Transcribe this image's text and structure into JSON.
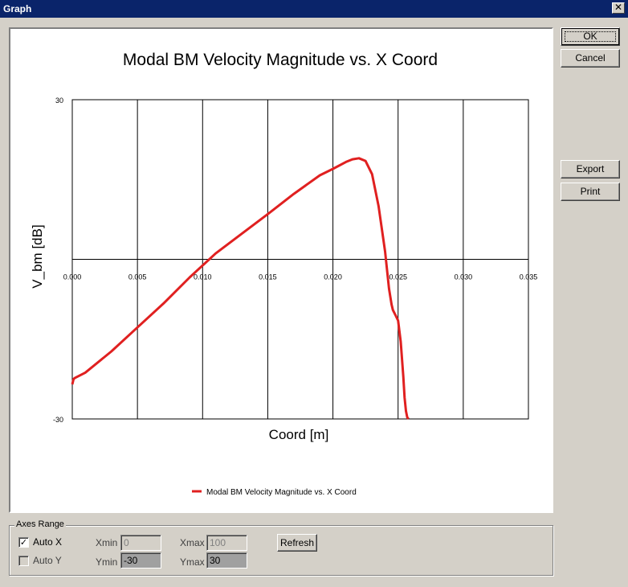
{
  "window": {
    "title": "Graph",
    "close_glyph": "✕"
  },
  "buttons": {
    "ok": "OK",
    "cancel": "Cancel",
    "export": "Export",
    "print": "Print",
    "refresh": "Refresh"
  },
  "chart_data": {
    "type": "line",
    "title": "Modal BM Velocity Magnitude vs. X Coord",
    "xlabel": "Coord [m]",
    "ylabel": "V_bm [dB]",
    "xlim": [
      0.0,
      0.035
    ],
    "ylim": [
      -30,
      30
    ],
    "xticks": [
      "0.000",
      "0.005",
      "0.010",
      "0.015",
      "0.020",
      "0.025",
      "0.030",
      "0.035"
    ],
    "yticks": [
      "30",
      "-30"
    ],
    "grid": true,
    "legend_position": "bottom-center",
    "line_color": "#e02020",
    "series": [
      {
        "name": "Modal BM Velocity Magnitude vs. X Coord",
        "x": [
          0.0,
          0.0001,
          0.0002,
          0.001,
          0.003,
          0.005,
          0.007,
          0.009,
          0.011,
          0.013,
          0.015,
          0.017,
          0.019,
          0.02,
          0.021,
          0.0215,
          0.022,
          0.0225,
          0.023,
          0.0235,
          0.024,
          0.0243,
          0.0245,
          0.0246,
          0.0248,
          0.025,
          0.0252,
          0.0254,
          0.0255,
          0.0256,
          0.0257,
          0.0258
        ],
        "y": [
          -23.5,
          -22.5,
          -22.3,
          -21.3,
          -17.3,
          -12.8,
          -8.3,
          -3.4,
          1.1,
          4.8,
          8.5,
          12.3,
          15.8,
          17.0,
          18.3,
          18.8,
          19.0,
          18.5,
          16.0,
          10.0,
          1.5,
          -5.5,
          -8.5,
          -9.5,
          -10.5,
          -11.5,
          -15.5,
          -22.0,
          -26.0,
          -28.5,
          -29.7,
          -30.0
        ]
      }
    ]
  },
  "axes_range": {
    "group_label": "Axes Range",
    "auto_x": {
      "label": "Auto X",
      "checked": true
    },
    "auto_y": {
      "label": "Auto Y",
      "checked": false
    },
    "xmin": {
      "label": "Xmin",
      "value": "0"
    },
    "xmax": {
      "label": "Xmax",
      "value": "100"
    },
    "ymin": {
      "label": "Ymin",
      "value": "-30"
    },
    "ymax": {
      "label": "Ymax",
      "value": "30"
    }
  }
}
